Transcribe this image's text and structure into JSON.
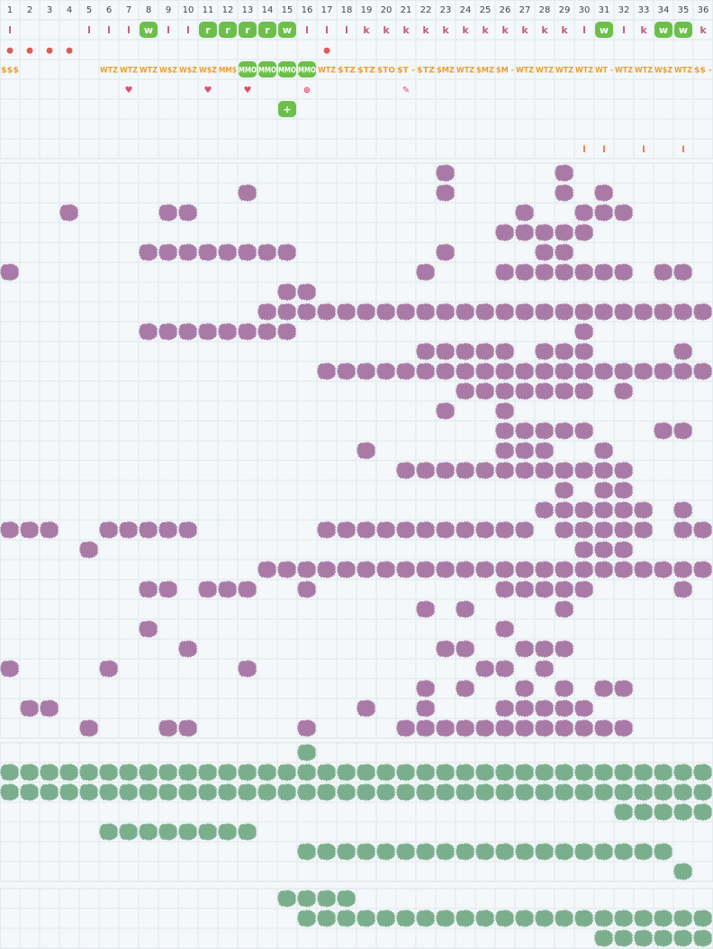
{
  "columns": [
    1,
    2,
    3,
    4,
    5,
    6,
    7,
    8,
    9,
    10,
    11,
    12,
    13,
    14,
    15,
    16,
    17,
    18,
    19,
    20,
    21,
    22,
    23,
    24,
    25,
    26,
    27,
    28,
    29,
    30,
    31,
    32,
    33,
    34,
    35,
    36
  ],
  "top_rows": [
    {
      "color": "#c0607a",
      "size": 11,
      "cells": [
        {
          "col": 1,
          "text": "l"
        },
        {
          "col": 5,
          "text": "l"
        },
        {
          "col": 6,
          "text": "l"
        },
        {
          "col": 7,
          "text": "l"
        },
        {
          "col": 8,
          "text": "w",
          "hl": true
        },
        {
          "col": 9,
          "text": "l"
        },
        {
          "col": 10,
          "text": "l"
        },
        {
          "col": 11,
          "text": "r",
          "hl": true
        },
        {
          "col": 12,
          "text": "r",
          "hl": true
        },
        {
          "col": 13,
          "text": "r",
          "hl": true
        },
        {
          "col": 14,
          "text": "r",
          "hl": true
        },
        {
          "col": 15,
          "text": "w",
          "hl": true
        },
        {
          "col": 16,
          "text": "l"
        },
        {
          "col": 17,
          "text": "l"
        },
        {
          "col": 18,
          "text": "l"
        },
        {
          "col": 19,
          "text": "k"
        },
        {
          "col": 20,
          "text": "k"
        },
        {
          "col": 21,
          "text": "k"
        },
        {
          "col": 22,
          "text": "k"
        },
        {
          "col": 23,
          "text": "k"
        },
        {
          "col": 24,
          "text": "k"
        },
        {
          "col": 25,
          "text": "k"
        },
        {
          "col": 26,
          "text": "k"
        },
        {
          "col": 27,
          "text": "k"
        },
        {
          "col": 28,
          "text": "k"
        },
        {
          "col": 29,
          "text": "k"
        },
        {
          "col": 30,
          "text": "l"
        },
        {
          "col": 31,
          "text": "w",
          "hl": true
        },
        {
          "col": 32,
          "text": "l"
        },
        {
          "col": 33,
          "text": "k"
        },
        {
          "col": 34,
          "text": "w",
          "hl": true
        },
        {
          "col": 35,
          "text": "w",
          "hl": true
        },
        {
          "col": 36,
          "text": "k"
        }
      ]
    },
    {
      "color": "#e05a5a",
      "size": 9,
      "cells": [
        {
          "col": 1,
          "text": "●"
        },
        {
          "col": 2,
          "text": "●"
        },
        {
          "col": 3,
          "text": "●"
        },
        {
          "col": 4,
          "text": "●"
        },
        {
          "col": 17,
          "text": "●"
        }
      ]
    },
    {
      "color": "#e8a030",
      "size": 9,
      "cells": [
        {
          "col": 1,
          "text": "$$$"
        },
        {
          "col": 6,
          "text": "WTZ"
        },
        {
          "col": 7,
          "text": "WTZ"
        },
        {
          "col": 8,
          "text": "WTZ"
        },
        {
          "col": 9,
          "text": "W$Z"
        },
        {
          "col": 10,
          "text": "W$Z"
        },
        {
          "col": 11,
          "text": "W$Z"
        },
        {
          "col": 12,
          "text": "MM$"
        },
        {
          "col": 13,
          "text": "MMO",
          "hl": true
        },
        {
          "col": 14,
          "text": "MMO",
          "hl": true
        },
        {
          "col": 15,
          "text": "MMO",
          "hl": true
        },
        {
          "col": 16,
          "text": "MMO",
          "hl": true
        },
        {
          "col": 17,
          "text": "WTZ"
        },
        {
          "col": 18,
          "text": "$TZ"
        },
        {
          "col": 19,
          "text": "$TZ"
        },
        {
          "col": 20,
          "text": "$TO"
        },
        {
          "col": 21,
          "text": "$T -"
        },
        {
          "col": 22,
          "text": "$TZ"
        },
        {
          "col": 23,
          "text": "$MZ"
        },
        {
          "col": 24,
          "text": "WTZ"
        },
        {
          "col": 25,
          "text": "$MZ"
        },
        {
          "col": 26,
          "text": "$M -"
        },
        {
          "col": 27,
          "text": "WTZ"
        },
        {
          "col": 28,
          "text": "WTZ"
        },
        {
          "col": 29,
          "text": "WTZ"
        },
        {
          "col": 30,
          "text": "WTZ"
        },
        {
          "col": 31,
          "text": "WT -"
        },
        {
          "col": 32,
          "text": "WTZ"
        },
        {
          "col": 33,
          "text": "WTZ"
        },
        {
          "col": 34,
          "text": "W$Z"
        },
        {
          "col": 35,
          "text": "WTZ"
        },
        {
          "col": 36,
          "text": "$$ -"
        }
      ]
    },
    {
      "color": "#e0506a",
      "size": 10,
      "cells": [
        {
          "col": 7,
          "text": "♥"
        },
        {
          "col": 11,
          "text": "♥"
        },
        {
          "col": 13,
          "text": "♥"
        },
        {
          "col": 16,
          "text": "⊕"
        },
        {
          "col": 21,
          "text": "✎"
        }
      ]
    },
    {
      "color": "#ffffff",
      "size": 11,
      "cells": [
        {
          "col": 15,
          "text": "+",
          "hl": true
        }
      ]
    },
    {
      "color": "#e8a030",
      "size": 9,
      "cells": []
    },
    {
      "color": "#f07040",
      "size": 10,
      "cells": [
        {
          "col": 30,
          "text": "l"
        },
        {
          "col": 31,
          "text": "l"
        },
        {
          "col": 33,
          "text": "l"
        },
        {
          "col": 35,
          "text": "l"
        }
      ]
    }
  ],
  "sections": [
    {
      "color": "#a97aa6",
      "rows": [
        [
          23,
          29
        ],
        [
          13,
          23,
          29,
          31
        ],
        [
          4,
          9,
          10,
          27,
          30,
          31,
          32
        ],
        [
          26,
          27,
          28,
          29,
          30
        ],
        [
          8,
          9,
          10,
          11,
          12,
          13,
          14,
          15,
          23,
          28,
          29
        ],
        [
          1,
          22,
          26,
          27,
          28,
          29,
          30,
          31,
          32,
          34,
          35
        ],
        [
          15,
          16
        ],
        [
          14,
          15,
          16,
          17,
          18,
          19,
          20,
          21,
          22,
          23,
          24,
          25,
          26,
          27,
          28,
          29,
          30,
          31,
          32,
          33,
          34,
          35,
          36
        ],
        [
          8,
          9,
          10,
          11,
          12,
          13,
          14,
          15,
          30
        ],
        [
          22,
          23,
          24,
          25,
          26,
          28,
          29,
          30,
          35
        ],
        [
          17,
          18,
          19,
          20,
          21,
          22,
          23,
          24,
          25,
          26,
          27,
          28,
          29,
          30,
          31,
          32,
          33,
          34,
          35,
          36
        ],
        [
          24,
          25,
          26,
          27,
          28,
          29,
          30,
          32
        ],
        [
          23,
          26
        ],
        [
          26,
          27,
          28,
          29,
          30,
          34,
          35
        ],
        [
          19,
          26,
          27,
          28,
          31
        ],
        [
          21,
          22,
          23,
          24,
          25,
          26,
          27,
          28,
          29,
          30,
          31,
          32
        ],
        [
          29,
          31,
          32
        ],
        [
          28,
          29,
          30,
          31,
          32,
          33,
          35
        ],
        [
          1,
          2,
          3,
          6,
          7,
          8,
          9,
          10,
          17,
          18,
          19,
          20,
          21,
          22,
          23,
          24,
          25,
          26,
          27,
          29,
          30,
          31,
          32,
          33,
          35,
          36
        ],
        [
          5,
          30,
          31,
          32
        ],
        [
          14,
          15,
          16,
          17,
          18,
          19,
          20,
          21,
          22,
          23,
          24,
          25,
          26,
          27,
          28,
          29,
          30,
          31,
          32,
          33,
          34,
          35,
          36
        ],
        [
          8,
          9,
          11,
          12,
          13,
          16,
          26,
          27,
          28,
          29,
          30,
          35
        ],
        [
          22,
          24,
          29
        ],
        [
          8,
          26
        ],
        [
          10,
          23,
          24,
          27,
          28,
          29
        ],
        [
          1,
          6,
          13,
          25,
          26,
          28
        ],
        [
          22,
          24,
          27,
          29,
          31,
          32
        ],
        [
          2,
          3,
          19,
          22,
          26,
          27,
          28,
          29,
          30
        ],
        [
          5,
          9,
          10,
          16,
          21,
          22,
          23,
          24,
          25,
          26,
          27,
          28,
          29,
          30,
          31,
          32
        ]
      ]
    },
    {
      "color": "#7bae8c",
      "rows": [
        [
          16
        ],
        [
          1,
          2,
          3,
          4,
          5,
          6,
          7,
          8,
          9,
          10,
          11,
          12,
          13,
          14,
          15,
          16,
          17,
          18,
          19,
          20,
          21,
          22,
          23,
          24,
          25,
          26,
          27,
          28,
          29,
          30,
          31,
          32,
          33,
          34,
          35,
          36
        ],
        [
          1,
          2,
          3,
          4,
          5,
          6,
          7,
          8,
          9,
          10,
          11,
          12,
          13,
          14,
          15,
          16,
          17,
          18,
          19,
          20,
          21,
          22,
          23,
          24,
          25,
          26,
          27,
          28,
          29,
          30,
          31,
          32,
          33,
          34,
          35,
          36
        ],
        [
          32,
          33,
          34,
          35,
          36
        ],
        [
          6,
          7,
          8,
          9,
          10,
          11,
          12,
          13
        ],
        [
          16,
          17,
          18,
          19,
          20,
          21,
          22,
          23,
          24,
          25,
          26,
          27,
          28,
          29,
          30,
          31,
          32,
          33,
          34
        ],
        [
          35
        ]
      ]
    },
    {
      "color": "#7bae8c",
      "rows": [
        [
          15,
          16,
          17,
          18
        ],
        [
          16,
          17,
          18,
          19,
          20,
          21,
          22,
          23,
          24,
          25,
          26,
          27,
          28,
          29,
          30,
          31,
          32,
          33,
          34,
          35,
          36
        ],
        [
          31,
          32,
          33,
          34,
          35,
          36
        ]
      ]
    }
  ]
}
